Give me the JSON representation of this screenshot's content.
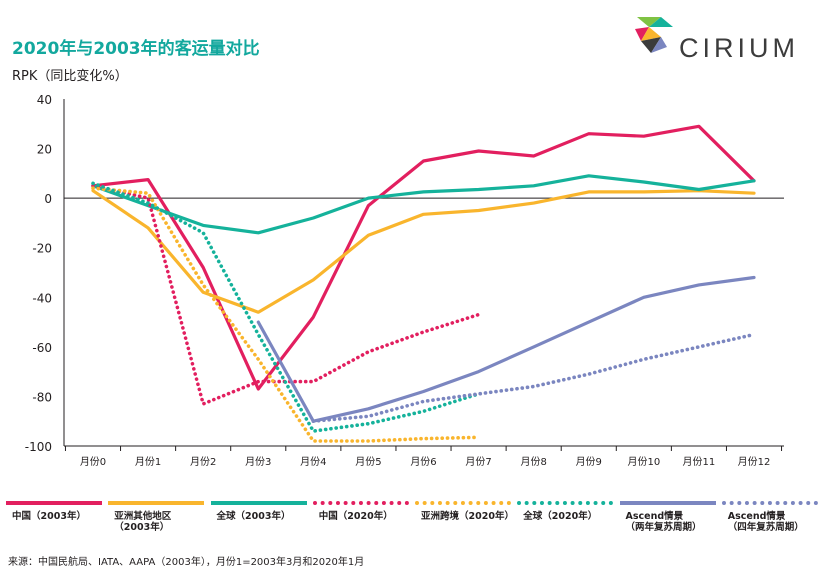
{
  "header": {
    "title": "2020年与2003年的客运量对比",
    "subtitle": "RPK（同比变化%）"
  },
  "logo": {
    "text": "CIRIUM"
  },
  "source": "来源：中国民航局、IATA、AAPA（2003年），月份1=2003年3月和2020年1月",
  "chart_data": {
    "type": "line",
    "title": "2020年与2003年的客运量对比",
    "ylabel": "RPK（同比变化%）",
    "xlabel": "",
    "categories": [
      "月份0",
      "月份1",
      "月份2",
      "月份3",
      "月份4",
      "月份5",
      "月份6",
      "月份7",
      "月份8",
      "月份9",
      "月份10",
      "月份11",
      "月份12"
    ],
    "ylim": [
      -100,
      40
    ],
    "yticks": [
      40,
      20,
      0,
      -20,
      -40,
      -60,
      -80,
      -100
    ],
    "grid": false,
    "legend_position": "bottom",
    "series": [
      {
        "name": "中国（2003年）",
        "label_lines": [
          "中国（2003年）"
        ],
        "color": "#e21f5f",
        "style": "solid",
        "values": [
          5,
          7.5,
          -28,
          -77,
          -48,
          -3,
          15,
          19,
          17,
          26,
          25,
          29,
          7
        ]
      },
      {
        "name": "亚洲其他地区（2003年）",
        "label_lines": [
          "亚洲其他地区",
          "（2003年）"
        ],
        "color": "#f9b52d",
        "style": "solid",
        "values": [
          3,
          -12,
          -38,
          -46,
          -33,
          -15,
          -6.5,
          -5,
          -2,
          2.5,
          2.5,
          3,
          2
        ]
      },
      {
        "name": "全球（2003年）",
        "label_lines": [
          "全球（2003年）"
        ],
        "color": "#15b29b",
        "style": "solid",
        "values": [
          5,
          -3,
          -11,
          -14,
          -8,
          0,
          2.5,
          3.5,
          5,
          9,
          6.5,
          3.5,
          7
        ]
      },
      {
        "name": "中国（2020年）",
        "label_lines": [
          "中国（2020年）"
        ],
        "color": "#e21f5f",
        "style": "dotted",
        "values": [
          5,
          0,
          -83,
          -74,
          -74,
          -62,
          -54,
          -47,
          null,
          null,
          null,
          null,
          null
        ]
      },
      {
        "name": "亚洲跨境（2020年）",
        "label_lines": [
          "亚洲跨境（2020年）"
        ],
        "color": "#f9b52d",
        "style": "dotted",
        "values": [
          4,
          2,
          -35,
          -65,
          -98,
          -98,
          -97,
          -96.5,
          null,
          null,
          null,
          null,
          null
        ]
      },
      {
        "name": "全球（2020年）",
        "label_lines": [
          "全球（2020年）"
        ],
        "color": "#15b29b",
        "style": "dotted",
        "values": [
          6,
          -2,
          -14,
          -55,
          -94,
          -91,
          -86,
          -79,
          null,
          null,
          null,
          null,
          null
        ]
      },
      {
        "name": "Ascend情景（两年复苏周期）",
        "label_lines": [
          "Ascend情景",
          "（两年复苏周期）"
        ],
        "color": "#7b86c0",
        "style": "solid",
        "values": [
          null,
          null,
          null,
          -50,
          -90,
          -85,
          -78,
          -70,
          -60,
          -50,
          -40,
          -35,
          -32
        ]
      },
      {
        "name": "Ascend情景（四年复苏周期）",
        "label_lines": [
          "Ascend情景",
          "（四年复苏周期）"
        ],
        "color": "#7b86c0",
        "style": "dotted",
        "values": [
          null,
          null,
          null,
          null,
          -90,
          -88,
          -82,
          -79,
          -76,
          -71,
          -65,
          -60,
          -55
        ]
      }
    ]
  }
}
